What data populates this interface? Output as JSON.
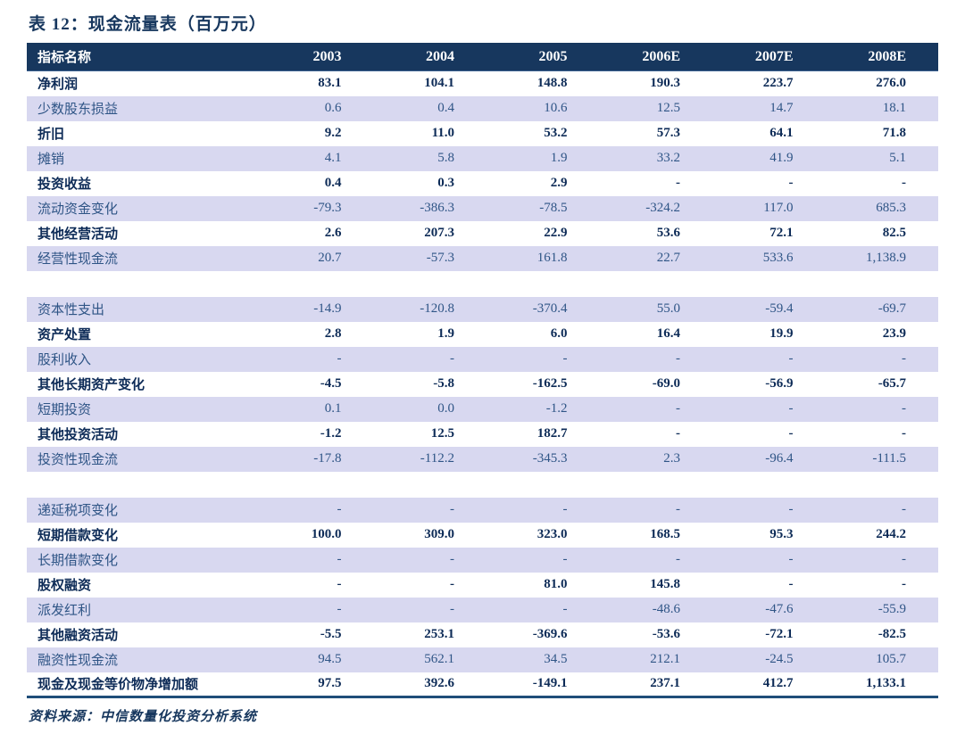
{
  "title": "表 12：现金流量表（百万元）",
  "source_note": "资料来源：中信数量化投资分析系统",
  "colors": {
    "header_bg": "#17375E",
    "stripe_bg": "#D8D8F0",
    "text_strong": "#0D2B57",
    "text_muted": "#2F5586",
    "bottom_rule": "#1F4E79"
  },
  "table": {
    "columns": [
      "指标名称",
      "2003",
      "2004",
      "2005",
      "2006E",
      "2007E",
      "2008E"
    ],
    "rows": [
      {
        "label": "净利润",
        "values": [
          "83.1",
          "104.1",
          "148.8",
          "190.3",
          "223.7",
          "276.0"
        ]
      },
      {
        "label": "少数股东损益",
        "values": [
          "0.6",
          "0.4",
          "10.6",
          "12.5",
          "14.7",
          "18.1"
        ]
      },
      {
        "label": "折旧",
        "values": [
          "9.2",
          "11.0",
          "53.2",
          "57.3",
          "64.1",
          "71.8"
        ]
      },
      {
        "label": "摊销",
        "values": [
          "4.1",
          "5.8",
          "1.9",
          "33.2",
          "41.9",
          "5.1"
        ]
      },
      {
        "label": "投资收益",
        "values": [
          "0.4",
          "0.3",
          "2.9",
          "-",
          "-",
          "-"
        ]
      },
      {
        "label": "流动资金变化",
        "values": [
          "-79.3",
          "-386.3",
          "-78.5",
          "-324.2",
          "117.0",
          "685.3"
        ]
      },
      {
        "label": "其他经营活动",
        "values": [
          "2.6",
          "207.3",
          "22.9",
          "53.6",
          "72.1",
          "82.5"
        ]
      },
      {
        "label": "经营性现金流",
        "values": [
          "20.7",
          "-57.3",
          "161.8",
          "22.7",
          "533.6",
          "1,138.9"
        ]
      },
      {
        "spacer": true
      },
      {
        "label": "资本性支出",
        "values": [
          "-14.9",
          "-120.8",
          "-370.4",
          "55.0",
          "-59.4",
          "-69.7"
        ]
      },
      {
        "label": "资产处置",
        "values": [
          "2.8",
          "1.9",
          "6.0",
          "16.4",
          "19.9",
          "23.9"
        ]
      },
      {
        "label": "股利收入",
        "values": [
          "-",
          "-",
          "-",
          "-",
          "-",
          "-"
        ]
      },
      {
        "label": "其他长期资产变化",
        "values": [
          "-4.5",
          "-5.8",
          "-162.5",
          "-69.0",
          "-56.9",
          "-65.7"
        ]
      },
      {
        "label": "短期投资",
        "values": [
          "0.1",
          "0.0",
          "-1.2",
          "-",
          "-",
          "-"
        ]
      },
      {
        "label": "其他投资活动",
        "values": [
          "-1.2",
          "12.5",
          "182.7",
          "-",
          "-",
          "-"
        ]
      },
      {
        "label": "投资性现金流",
        "values": [
          "-17.8",
          "-112.2",
          "-345.3",
          "2.3",
          "-96.4",
          "-111.5"
        ]
      },
      {
        "spacer": true
      },
      {
        "label": "递延税项变化",
        "values": [
          "-",
          "-",
          "-",
          "-",
          "-",
          "-"
        ]
      },
      {
        "label": "短期借款变化",
        "values": [
          "100.0",
          "309.0",
          "323.0",
          "168.5",
          "95.3",
          "244.2"
        ]
      },
      {
        "label": "长期借款变化",
        "values": [
          "-",
          "-",
          "-",
          "-",
          "-",
          "-"
        ]
      },
      {
        "label": "股权融资",
        "values": [
          "-",
          "-",
          "81.0",
          "145.8",
          "-",
          "-"
        ]
      },
      {
        "label": "派发红利",
        "values": [
          "-",
          "-",
          "-",
          "-48.6",
          "-47.6",
          "-55.9"
        ]
      },
      {
        "label": "其他融资活动",
        "values": [
          "-5.5",
          "253.1",
          "-369.6",
          "-53.6",
          "-72.1",
          "-82.5"
        ]
      },
      {
        "label": "融资性现金流",
        "values": [
          "94.5",
          "562.1",
          "34.5",
          "212.1",
          "-24.5",
          "105.7"
        ]
      },
      {
        "label": "现金及现金等价物净增加额",
        "values": [
          "97.5",
          "392.6",
          "-149.1",
          "237.1",
          "412.7",
          "1,133.1"
        ]
      }
    ]
  }
}
